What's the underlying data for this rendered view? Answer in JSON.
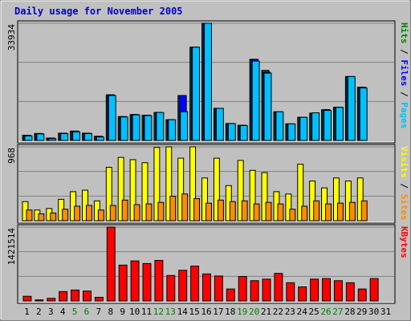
{
  "chart_data": {
    "type": "bar",
    "title": "Daily usage for November 2005",
    "days": [
      "1",
      "2",
      "3",
      "4",
      "5",
      "6",
      "7",
      "8",
      "9",
      "10",
      "11",
      "12",
      "13",
      "14",
      "15",
      "16",
      "17",
      "18",
      "19",
      "20",
      "21",
      "22",
      "23",
      "24",
      "25",
      "26",
      "27",
      "28",
      "29",
      "30",
      "31"
    ],
    "weekend_days": [
      "5",
      "6",
      "12",
      "13",
      "19",
      "20",
      "26",
      "27"
    ],
    "colors": {
      "background": "#c0c0c0",
      "title": "#0000cc",
      "hits": "#008000",
      "files": "#0080ff",
      "pages": "#00c0ff",
      "visits": "#ffff00",
      "sites": "#ff8c00",
      "kbytes": "#ff0000",
      "weekend_tick": "#008000"
    },
    "panels": [
      {
        "id": "hits-files-pages",
        "ymax_label": "33934",
        "ymax": 33934,
        "labels": [
          {
            "text": "Hits",
            "color": "#008000"
          },
          {
            "text": " / ",
            "color": "#000000"
          },
          {
            "text": "Files",
            "color": "#0000ff"
          },
          {
            "text": " / ",
            "color": "#000000"
          },
          {
            "text": "Pages",
            "color": "#00c0ff"
          }
        ],
        "series": [
          {
            "name": "Hits",
            "color": "#008000",
            "values": [
              1500,
              2000,
              700,
              2100,
              2700,
              2100,
              1200,
              13200,
              6900,
              7500,
              7300,
              8100,
              6000,
              13000,
              27000,
              33934,
              9300,
              4900,
              4400,
              23500,
              20300,
              8300,
              4800,
              6700,
              7900,
              8900,
              9600,
              18500,
              15400,
              0,
              0
            ]
          },
          {
            "name": "Files",
            "color": "#0000ff",
            "values": [
              1500,
              2000,
              700,
              2100,
              2700,
              2100,
              1200,
              13200,
              6900,
              7500,
              7300,
              8100,
              6000,
              13000,
              27000,
              33934,
              9300,
              4900,
              4400,
              23500,
              19800,
              8300,
              4800,
              6700,
              7900,
              8900,
              9600,
              18500,
              15400,
              0,
              0
            ]
          },
          {
            "name": "Pages",
            "color": "#00c0ff",
            "values": [
              1300,
              1900,
              500,
              2000,
              2500,
              2000,
              1000,
              13000,
              6800,
              7400,
              7200,
              8100,
              6000,
              8300,
              27000,
              34000,
              9300,
              4900,
              4300,
              23000,
              19500,
              8300,
              4800,
              6700,
              8000,
              8700,
              9600,
              18500,
              15200,
              0,
              0
            ]
          }
        ]
      },
      {
        "id": "visits-sites",
        "ymax_label": "968",
        "ymax": 968,
        "labels": [
          {
            "text": "Visits",
            "color": "#ffff00"
          },
          {
            "text": " / ",
            "color": "#000000"
          },
          {
            "text": "Sites",
            "color": "#ff8c00"
          }
        ],
        "series": [
          {
            "name": "Visits",
            "color": "#ffff00",
            "values": [
              250,
              140,
              160,
              280,
              380,
              400,
              260,
              700,
              830,
              800,
              760,
              960,
              968,
              820,
              968,
              560,
              820,
              460,
              790,
              660,
              630,
              380,
              350,
              740,
              520,
              430,
              560,
              520,
              560,
              0,
              0
            ]
          },
          {
            "name": "Sites",
            "color": "#ff8c00",
            "values": [
              140,
              90,
              100,
              150,
              190,
              200,
              140,
              200,
              270,
              210,
              220,
              240,
              320,
              350,
              290,
              230,
              270,
              250,
              260,
              220,
              240,
              220,
              150,
              190,
              260,
              220,
              230,
              240,
              260,
              0,
              0
            ]
          }
        ]
      },
      {
        "id": "kbytes",
        "ymax_label": "1421514",
        "ymax": 1421514,
        "labels": [
          {
            "text": "KBytes",
            "color": "#ff0000"
          }
        ],
        "series": [
          {
            "name": "KBytes",
            "color": "#ff0000",
            "values": [
              90000,
              20000,
              50000,
              180000,
              210000,
              190000,
              70000,
              1421514,
              690000,
              770000,
              720000,
              780000,
              490000,
              590000,
              670000,
              520000,
              480000,
              230000,
              470000,
              390000,
              420000,
              530000,
              350000,
              270000,
              420000,
              430000,
              390000,
              350000,
              230000,
              430000,
              0
            ]
          }
        ]
      }
    ]
  }
}
